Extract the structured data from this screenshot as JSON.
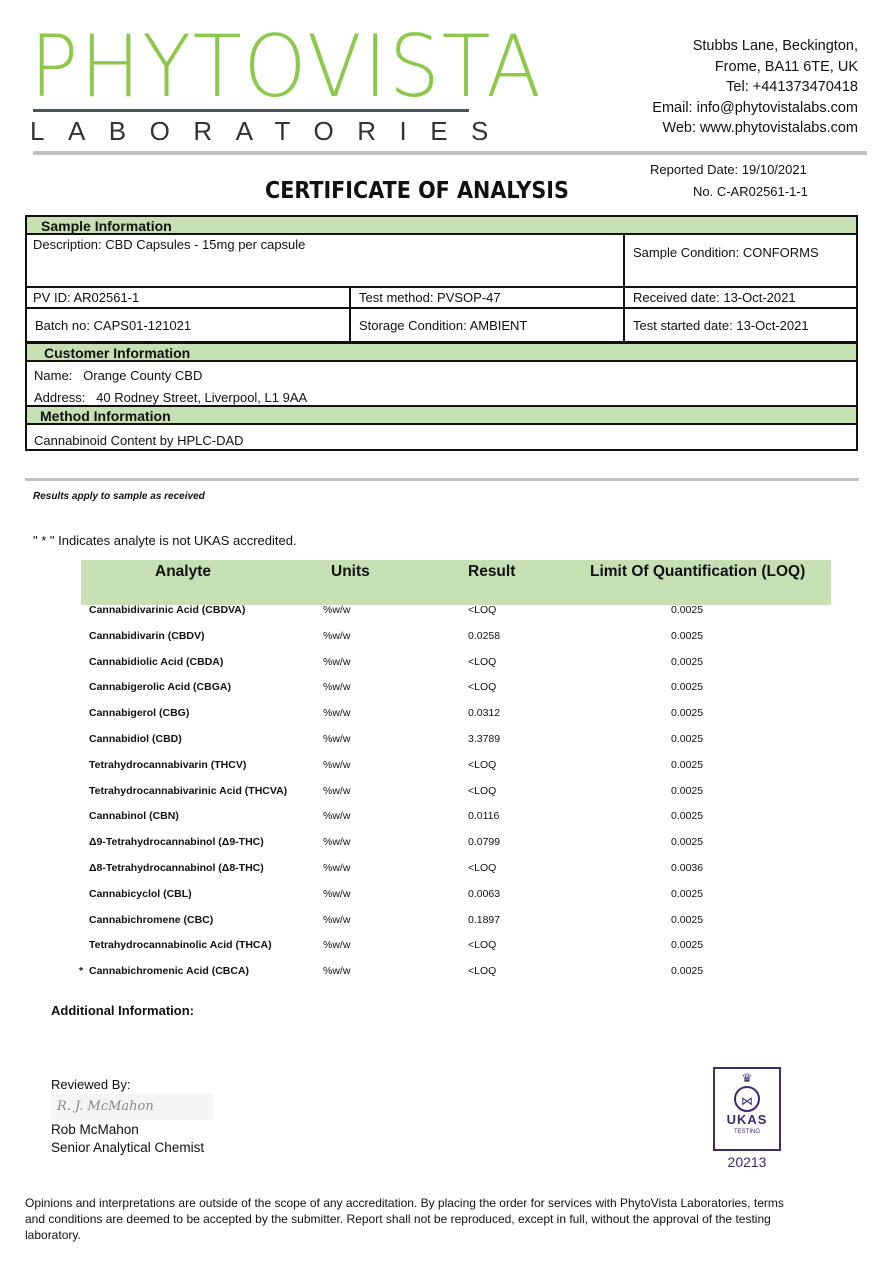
{
  "header": {
    "logo_text": "PHYTOVISTA",
    "logo_sub": "LABORATORIES",
    "address_line1": "Stubbs Lane, Beckington,",
    "address_line2": "Frome, BA11 6TE, UK",
    "tel": "Tel: +441373470418",
    "email": "Email: info@phytovistalabs.com",
    "web": "Web: www.phytovistalabs.com",
    "reported_date": "Reported Date: 19/10/2021",
    "cert_no": "No. C-AR02561-1-1",
    "title": "CERTIFICATE OF ANALYSIS"
  },
  "sample": {
    "heading": "Sample Information",
    "description": "Description: CBD Capsules - 15mg per capsule",
    "condition": "Sample Condition: CONFORMS",
    "pv_id": "PV ID: AR02561-1",
    "test_method": "Test method: PVSOP-47",
    "received": "Received date: 13-Oct-2021",
    "batch": "Batch no: CAPS01-121021",
    "storage": "Storage Condition: AMBIENT",
    "test_started": "Test started date: 13-Oct-2021"
  },
  "customer": {
    "heading": "Customer Information",
    "name_label": "Name:",
    "name": "Orange County CBD",
    "address_label": "Address:",
    "address": "40 Rodney Street, Liverpool, L1 9AA"
  },
  "method": {
    "heading": "Method Information",
    "value": "Cannabinoid Content by HPLC-DAD"
  },
  "notes": {
    "results_apply": "Results apply to sample as received",
    "ukas_note": "\" * \" Indicates analyte is not UKAS accredited."
  },
  "results": {
    "headers": [
      "Analyte",
      "Units",
      "Result",
      "Limit Of Quantification (LOQ)"
    ],
    "rows": [
      {
        "mark": "",
        "analyte": "Cannabidivarinic Acid (CBDVA)",
        "units": "%w/w",
        "result": "<LOQ",
        "loq": "0.0025"
      },
      {
        "mark": "",
        "analyte": "Cannabidivarin (CBDV)",
        "units": "%w/w",
        "result": "0.0258",
        "loq": "0.0025"
      },
      {
        "mark": "",
        "analyte": "Cannabidiolic Acid (CBDA)",
        "units": "%w/w",
        "result": "<LOQ",
        "loq": "0.0025"
      },
      {
        "mark": "",
        "analyte": "Cannabigerolic Acid (CBGA)",
        "units": "%w/w",
        "result": "<LOQ",
        "loq": "0.0025"
      },
      {
        "mark": "",
        "analyte": "Cannabigerol (CBG)",
        "units": "%w/w",
        "result": "0.0312",
        "loq": "0.0025"
      },
      {
        "mark": "",
        "analyte": "Cannabidiol (CBD)",
        "units": "%w/w",
        "result": "3.3789",
        "loq": "0.0025"
      },
      {
        "mark": "",
        "analyte": "Tetrahydrocannabivarin (THCV)",
        "units": "%w/w",
        "result": "<LOQ",
        "loq": "0.0025"
      },
      {
        "mark": "",
        "analyte": "Tetrahydrocannabivarinic Acid (THCVA)",
        "units": "%w/w",
        "result": "<LOQ",
        "loq": "0.0025"
      },
      {
        "mark": "",
        "analyte": "Cannabinol (CBN)",
        "units": "%w/w",
        "result": "0.0116",
        "loq": "0.0025"
      },
      {
        "mark": "",
        "analyte": "Δ9-Tetrahydrocannabinol (Δ9-THC)",
        "units": "%w/w",
        "result": "0.0799",
        "loq": "0.0025"
      },
      {
        "mark": "",
        "analyte": "Δ8-Tetrahydrocannabinol (Δ8-THC)",
        "units": "%w/w",
        "result": "<LOQ",
        "loq": "0.0036"
      },
      {
        "mark": "",
        "analyte": "Cannabicyclol (CBL)",
        "units": "%w/w",
        "result": "0.0063",
        "loq": "0.0025"
      },
      {
        "mark": "",
        "analyte": "Cannabichromene (CBC)",
        "units": "%w/w",
        "result": "0.1897",
        "loq": "0.0025"
      },
      {
        "mark": "",
        "analyte": "Tetrahydrocannabinolic Acid (THCA)",
        "units": "%w/w",
        "result": "<LOQ",
        "loq": "0.0025"
      },
      {
        "mark": "*",
        "analyte": "Cannabichromenic Acid (CBCA)",
        "units": "%w/w",
        "result": "<LOQ",
        "loq": "0.0025"
      }
    ]
  },
  "additional": {
    "label": "Additional Information:"
  },
  "review": {
    "label": "Reviewed By:",
    "signature": "R. J. McMahon",
    "name": "Rob McMahon",
    "role": "Senior Analytical Chemist"
  },
  "ukas": {
    "text": "UKAS",
    "sub": "TESTING",
    "number": "20213",
    "color": "#3d2a7a"
  },
  "footer": {
    "disclaimer": "Opinions and interpretations are outside of the scope of any accreditation. By placing the order for services with PhytoVista Laboratories, terms and conditions are deemed to be accepted by the submitter. Report shall not be reproduced, except in full, without the approval of the testing laboratory."
  },
  "colors": {
    "brand_green": "#8cc84b",
    "header_fill": "#c6e0b4"
  }
}
